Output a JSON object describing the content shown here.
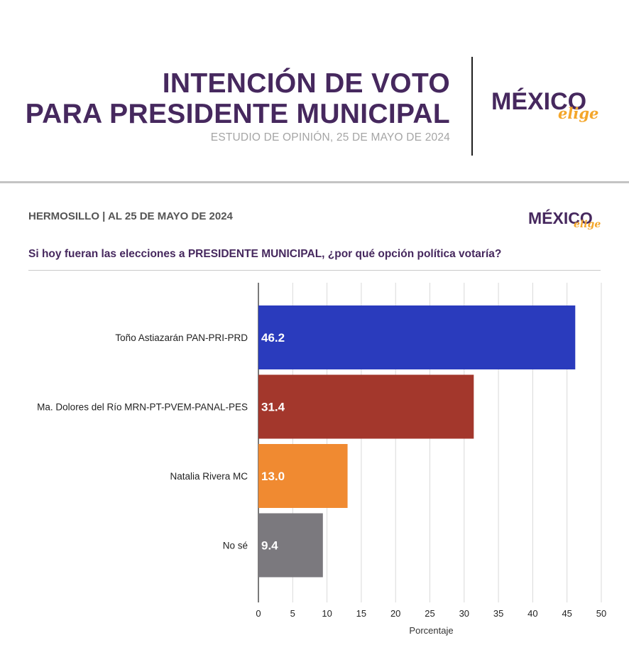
{
  "header": {
    "title_line1": "INTENCIÓN DE VOTO",
    "title_line2": "PARA PRESIDENTE MUNICIPAL",
    "subtitle": "ESTUDIO DE OPINIÓN, 25 DE MAYO DE 2024"
  },
  "logo": {
    "main": "MÉXICO",
    "script": "elige",
    "main_color": "#46285e",
    "script_color": "#f4a62a"
  },
  "panel": {
    "heading": "HERMOSILLO | AL 25 DE MAYO DE 2024",
    "question": "Si hoy fueran las elecciones a PRESIDENTE MUNICIPAL, ¿por qué opción política votaría?"
  },
  "chart_data": {
    "type": "bar",
    "orientation": "horizontal",
    "categories": [
      "Toño Astiazarán PAN-PRI-PRD",
      "Ma. Dolores del Río MRN-PT-PVEM-PANAL-PES",
      "Natalia Rivera MC",
      "No sé"
    ],
    "values": [
      46.2,
      31.4,
      13.0,
      9.4
    ],
    "value_labels": [
      "46.2",
      "31.4",
      "13.0",
      "9.4"
    ],
    "colors": [
      "#2a3bbd",
      "#a3372c",
      "#f08a31",
      "#7b797e"
    ],
    "xlabel": "Porcentaje",
    "xlim": [
      0,
      50
    ],
    "xticks": [
      "0",
      "5",
      "10",
      "15",
      "20",
      "25",
      "30",
      "35",
      "40",
      "45",
      "50"
    ],
    "grid": true
  }
}
